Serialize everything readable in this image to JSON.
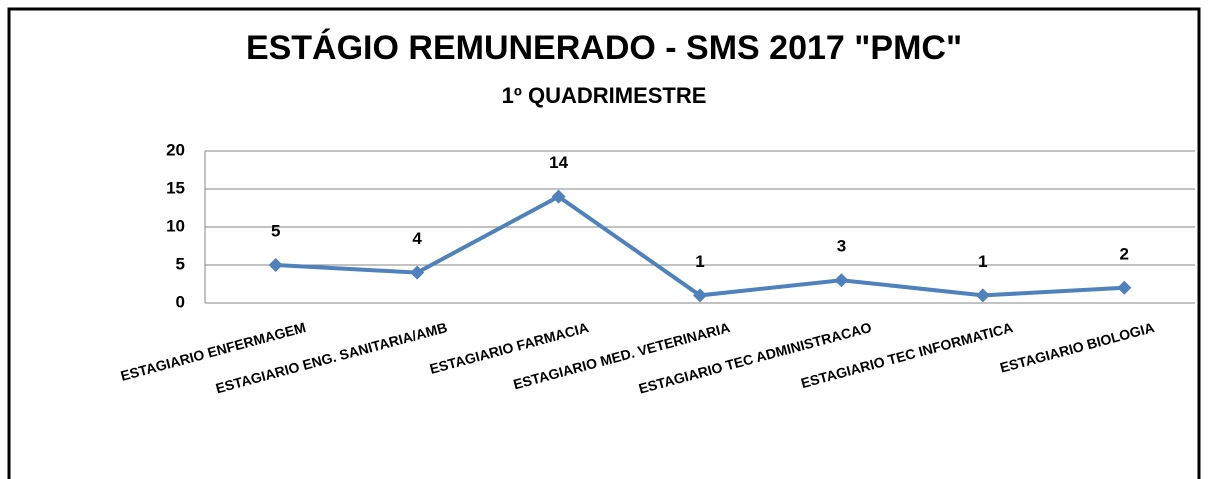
{
  "chart_data": {
    "type": "line",
    "title": "ESTÁGIO REMUNERADO - SMS 2017 \"PMC\"",
    "subtitle": "1º QUADRIMESTRE",
    "categories": [
      "ESTAGIARIO ENFERMAGEM",
      "ESTAGIARIO ENG. SANITARIA/AMB",
      "ESTAGIARIO FARMACIA",
      "ESTAGIARIO MED. VETERINARIA",
      "ESTAGIARIO TEC ADMINISTRACAO",
      "ESTAGIARIO TEC INFORMATICA",
      "ESTAGIARIO BIOLOGIA"
    ],
    "values": [
      5,
      4,
      14,
      1,
      3,
      1,
      2
    ],
    "color": "#4f81bd",
    "ylim": [
      0,
      20
    ],
    "yticks": [
      0,
      5,
      10,
      15,
      20
    ],
    "grid": true
  }
}
